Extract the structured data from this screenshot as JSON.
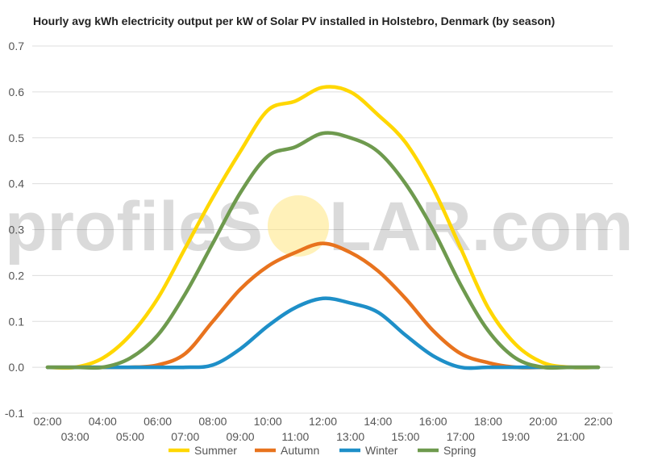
{
  "watermark": {
    "left": "profileS",
    "right": "LAR.com"
  },
  "chart_data": {
    "type": "line",
    "title": "Hourly avg kWh electricity output per kW of Solar PV installed in Holstebro, Denmark (by season)",
    "xlabel": "",
    "ylabel": "",
    "ylim": [
      -0.1,
      0.7
    ],
    "yticks": [
      -0.1,
      0.0,
      0.1,
      0.2,
      0.3,
      0.4,
      0.5,
      0.6,
      0.7
    ],
    "grid": true,
    "legend": "bottom",
    "x": [
      "02:00",
      "03:00",
      "04:00",
      "05:00",
      "06:00",
      "07:00",
      "08:00",
      "09:00",
      "10:00",
      "11:00",
      "12:00",
      "13:00",
      "14:00",
      "15:00",
      "16:00",
      "17:00",
      "18:00",
      "19:00",
      "20:00",
      "21:00",
      "22:00"
    ],
    "series": [
      {
        "name": "Summer",
        "color": "#FFD700",
        "values": [
          0.0,
          0.0,
          0.02,
          0.07,
          0.15,
          0.26,
          0.37,
          0.47,
          0.56,
          0.58,
          0.61,
          0.6,
          0.55,
          0.49,
          0.39,
          0.26,
          0.13,
          0.05,
          0.01,
          0.0,
          0.0
        ]
      },
      {
        "name": "Autumn",
        "color": "#E8731E",
        "values": [
          0.0,
          0.0,
          0.0,
          0.0,
          0.005,
          0.03,
          0.1,
          0.17,
          0.22,
          0.25,
          0.27,
          0.25,
          0.21,
          0.15,
          0.08,
          0.03,
          0.01,
          0.0,
          0.0,
          0.0,
          0.0
        ]
      },
      {
        "name": "Winter",
        "color": "#1E8FC8",
        "values": [
          0.0,
          0.0,
          0.0,
          0.0,
          0.0,
          0.0,
          0.005,
          0.04,
          0.09,
          0.13,
          0.15,
          0.14,
          0.12,
          0.07,
          0.025,
          0.0,
          0.0,
          0.0,
          0.0,
          0.0,
          0.0
        ]
      },
      {
        "name": "Spring",
        "color": "#6E9A4E",
        "values": [
          0.0,
          0.0,
          0.0,
          0.02,
          0.07,
          0.16,
          0.27,
          0.38,
          0.46,
          0.48,
          0.51,
          0.5,
          0.47,
          0.4,
          0.3,
          0.18,
          0.08,
          0.02,
          0.0,
          0.0,
          0.0
        ]
      }
    ]
  }
}
